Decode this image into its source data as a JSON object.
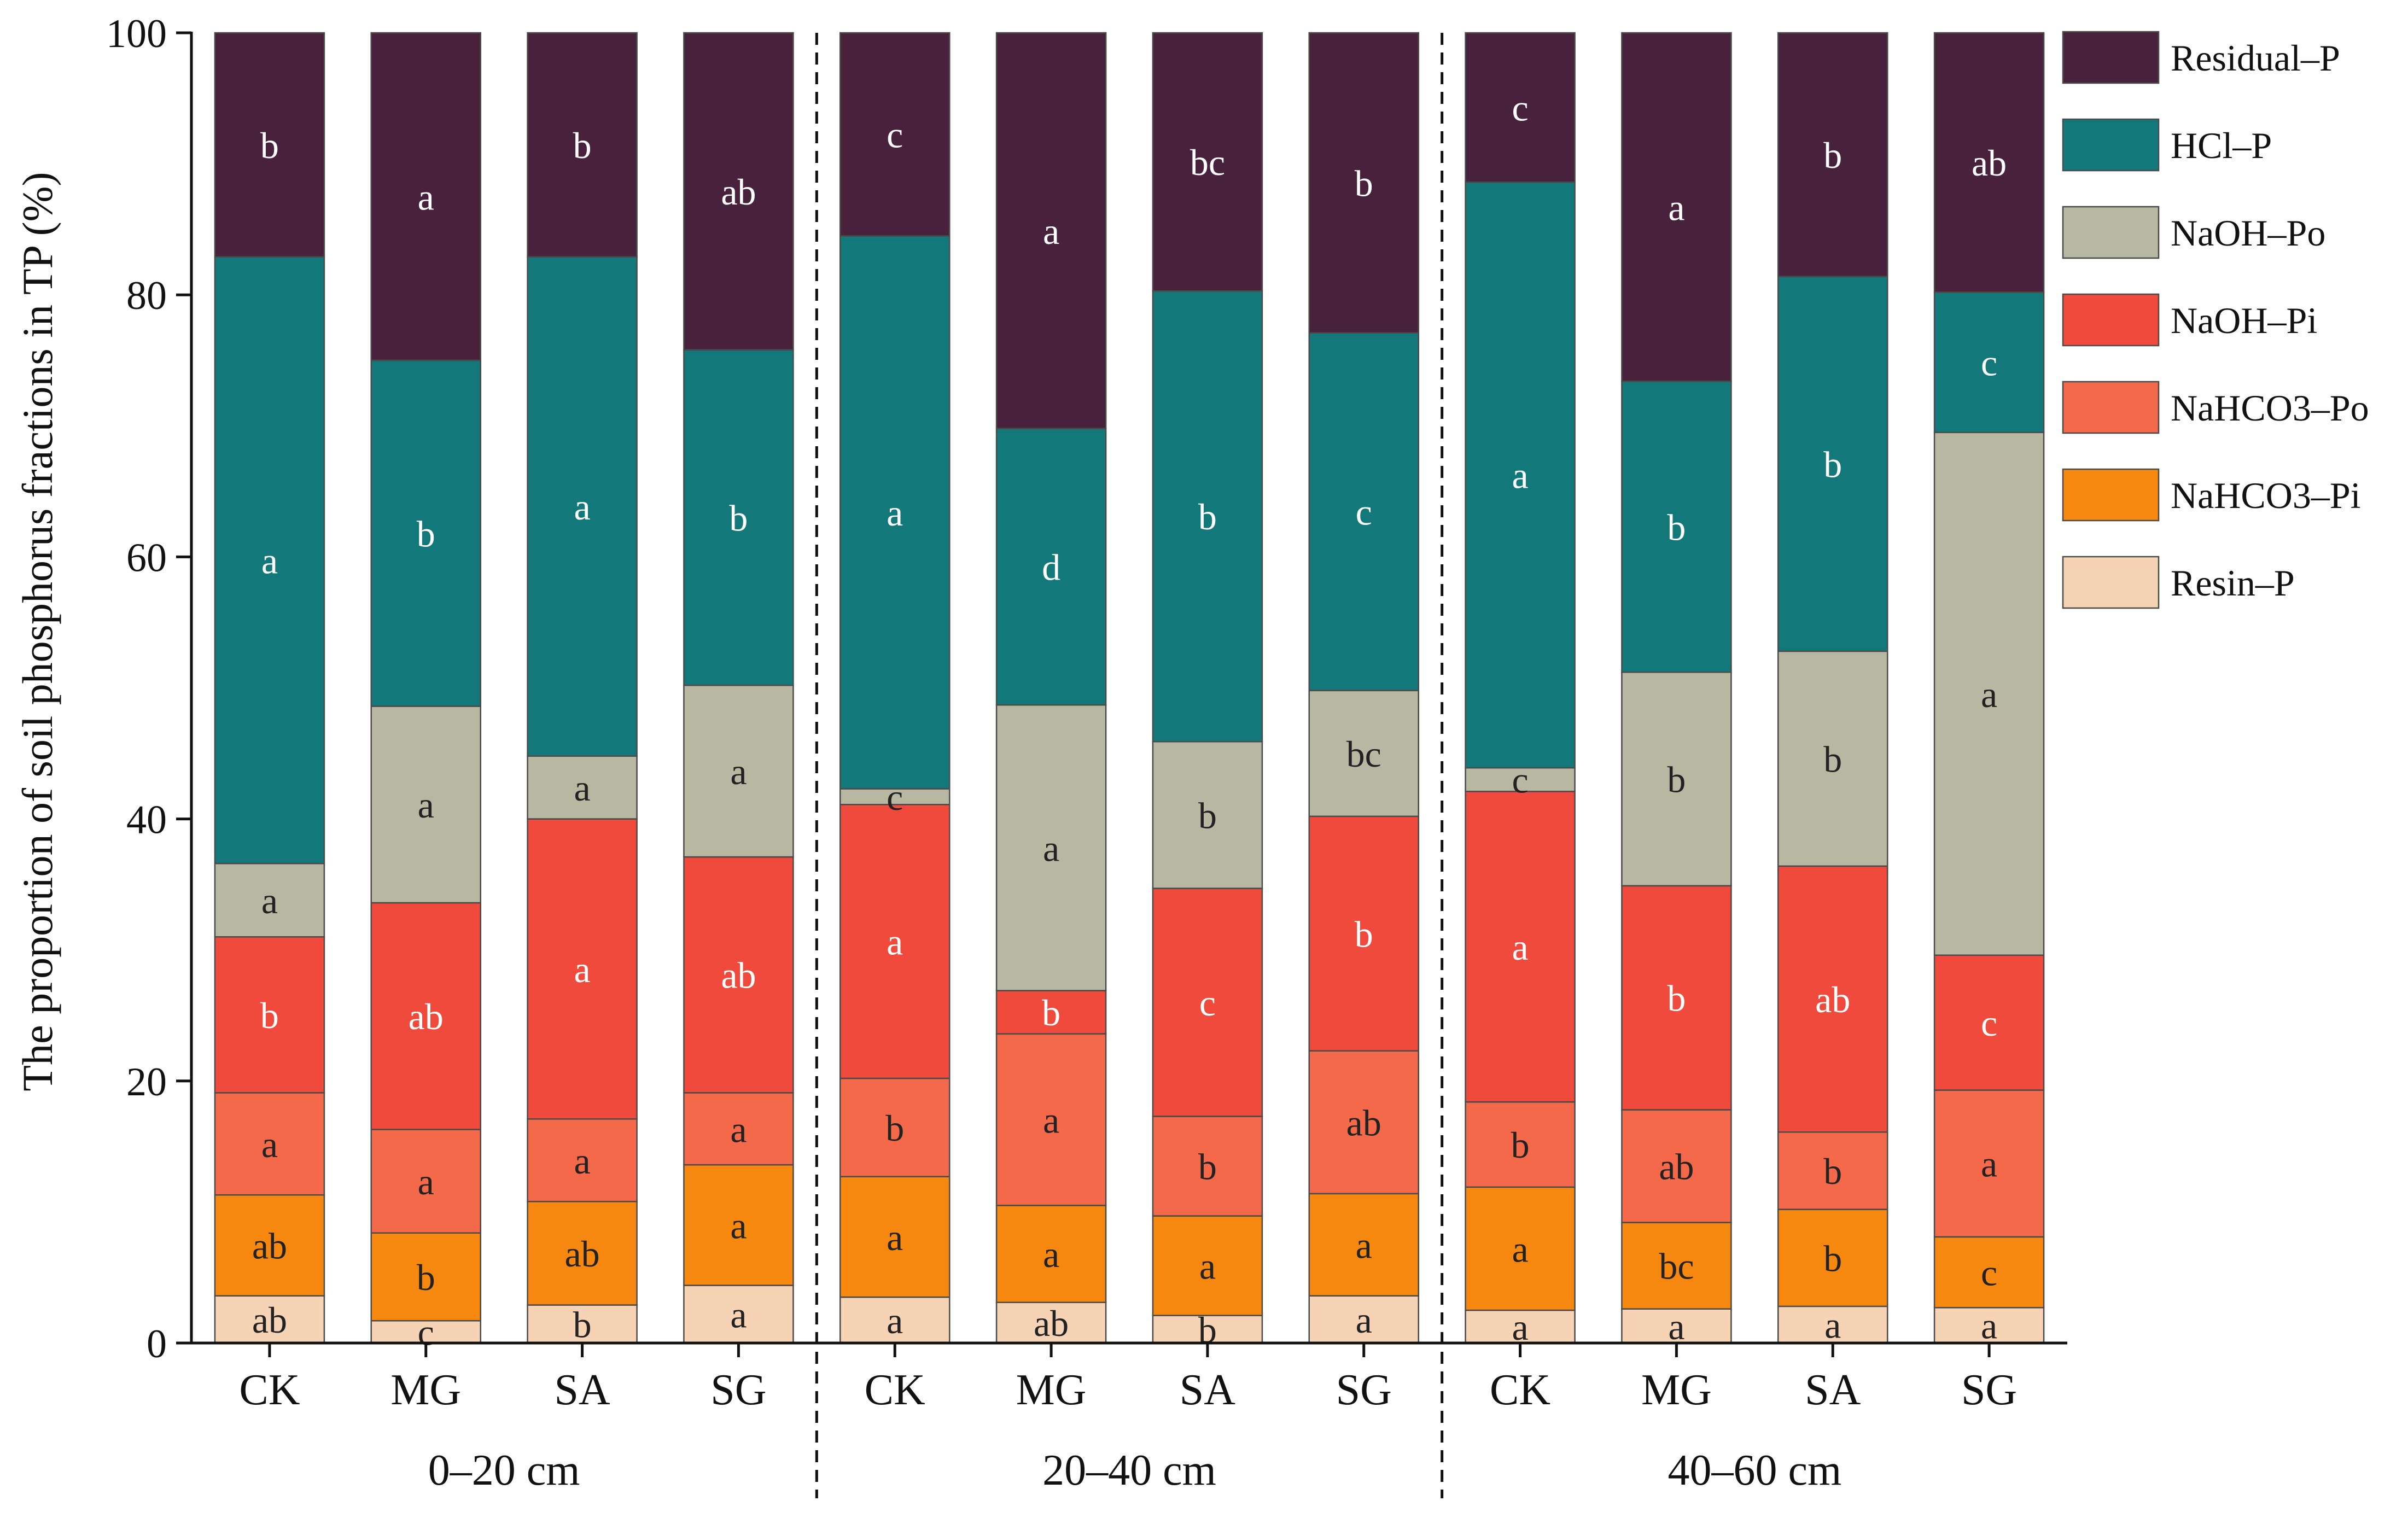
{
  "chart_data": {
    "type": "bar",
    "stacked": true,
    "ylabel": "The proportion of soil phosphorus fractions in TP (%)",
    "ylim": [
      0,
      100
    ],
    "yticks": [
      "0",
      "20",
      "40",
      "60",
      "80",
      "100"
    ],
    "categories": [
      "CK",
      "MG",
      "SA",
      "SG",
      "CK",
      "MG",
      "SA",
      "SG",
      "CK",
      "MG",
      "SA",
      "SG"
    ],
    "groups": [
      {
        "label": "0–20 cm",
        "start": 0,
        "end": 3
      },
      {
        "label": "20–40 cm",
        "start": 4,
        "end": 7
      },
      {
        "label": "40–60 cm",
        "start": 8,
        "end": 11
      }
    ],
    "legend_position": "right",
    "series": [
      {
        "name": "Resin–P",
        "color": "#F6D3B4",
        "values": [
          3.6,
          1.7,
          2.9,
          4.4,
          3.5,
          3.1,
          2.1,
          3.6,
          2.5,
          2.6,
          2.8,
          2.7
        ],
        "letters": [
          "ab",
          "c",
          "b",
          "a",
          "a",
          "ab",
          "b",
          "a",
          "a",
          "a",
          "a",
          "a"
        ],
        "letter_color": "#222222"
      },
      {
        "name": "NaHCO3–Pi",
        "color": "#F7880F",
        "values": [
          7.7,
          6.7,
          7.9,
          9.2,
          9.2,
          7.4,
          7.6,
          7.8,
          9.4,
          6.6,
          7.4,
          5.4
        ],
        "letters": [
          "ab",
          "b",
          "ab",
          "a",
          "a",
          "a",
          "a",
          "a",
          "a",
          "bc",
          "b",
          "c"
        ],
        "letter_color": "#222222"
      },
      {
        "name": "NaHCO3–Po",
        "color": "#F5694B",
        "values": [
          7.8,
          7.9,
          6.3,
          5.5,
          7.5,
          13.1,
          7.6,
          10.9,
          6.5,
          8.6,
          5.9,
          11.2
        ],
        "letters": [
          "a",
          "a",
          "a",
          "a",
          "b",
          "a",
          "b",
          "ab",
          "b",
          "ab",
          "b",
          "a"
        ],
        "letter_color": "#222222"
      },
      {
        "name": "NaOH–Pi",
        "color": "#EF4A3B",
        "values": [
          11.9,
          17.3,
          22.9,
          18.0,
          20.9,
          3.3,
          17.4,
          17.9,
          23.7,
          17.1,
          20.3,
          10.3
        ],
        "letters": [
          "b",
          "ab",
          "a",
          "ab",
          "a",
          "b",
          "c",
          "b",
          "a",
          "b",
          "ab",
          "c"
        ],
        "letter_color": "#ffffff"
      },
      {
        "name": "NaOH–Po",
        "color": "#B8B7A2",
        "values": [
          5.6,
          15.0,
          4.8,
          13.1,
          1.2,
          21.8,
          11.2,
          9.6,
          1.8,
          16.3,
          16.4,
          39.9
        ],
        "letters": [
          "a",
          "a",
          "a",
          "a",
          "c",
          "a",
          "b",
          "bc",
          "c",
          "b",
          "b",
          "a"
        ],
        "letter_color": "#222222"
      },
      {
        "name": "HCl–P",
        "color": "#12787A",
        "values": [
          46.3,
          26.4,
          38.1,
          25.6,
          42.2,
          21.1,
          34.4,
          27.3,
          44.7,
          22.2,
          28.6,
          10.7
        ],
        "letters": [
          "a",
          "b",
          "a",
          "b",
          "a",
          "d",
          "b",
          "c",
          "a",
          "b",
          "b",
          "c"
        ],
        "letter_color": "#ffffff"
      },
      {
        "name": "Residual–P",
        "color": "#48223C",
        "values": [
          17.1,
          25.0,
          17.1,
          24.2,
          15.5,
          30.2,
          19.7,
          22.9,
          11.4,
          26.6,
          18.6,
          19.8
        ],
        "letters": [
          "b",
          "a",
          "b",
          "ab",
          "c",
          "a",
          "bc",
          "b",
          "c",
          "a",
          "b",
          "ab"
        ],
        "letter_color": "#ffffff"
      }
    ]
  }
}
